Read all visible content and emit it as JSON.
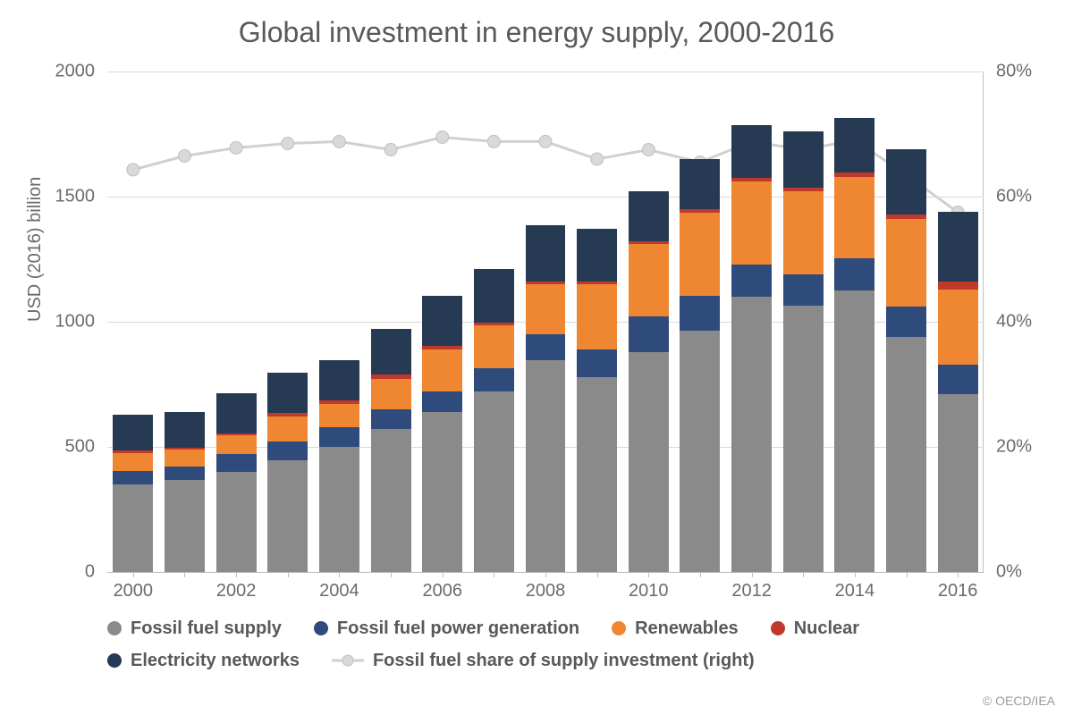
{
  "title": "Global investment in energy supply, 2000-2016",
  "credit": "© OECD/IEA",
  "y_left": {
    "label": "USD (2016) billion",
    "min": 0,
    "max": 2000,
    "ticks": [
      0,
      500,
      1000,
      1500,
      2000
    ],
    "fontsize": 20,
    "color": "#6b6b6b"
  },
  "y_right": {
    "min": 0,
    "max": 80,
    "ticks": [
      0,
      20,
      40,
      60,
      80
    ],
    "suffix": "%",
    "fontsize": 20,
    "color": "#6b6b6b"
  },
  "x": {
    "categories": [
      2000,
      2001,
      2002,
      2003,
      2004,
      2005,
      2006,
      2007,
      2008,
      2009,
      2010,
      2011,
      2012,
      2013,
      2014,
      2015,
      2016
    ],
    "tick_labels": [
      2000,
      2002,
      2004,
      2006,
      2008,
      2010,
      2012,
      2014,
      2016
    ],
    "fontsize": 20,
    "color": "#6b6b6b"
  },
  "grid": {
    "color": "#d9d9d9"
  },
  "axis_line_color": "#bfbfbf",
  "background_color": "#ffffff",
  "bar_width_ratio": 0.78,
  "series_colors": {
    "fossil_supply": "#8a8a8a",
    "fossil_power": "#2f4b7c",
    "renewables": "#ef8632",
    "nuclear": "#c0392b",
    "networks": "#263a53"
  },
  "series_labels": {
    "fossil_supply": "Fossil fuel supply",
    "fossil_power": "Fossil fuel power generation",
    "renewables": "Renewables",
    "nuclear": "Nuclear",
    "networks": "Electricity networks",
    "share_line": "Fossil fuel share of supply investment (right)"
  },
  "stack_order": [
    "fossil_supply",
    "fossil_power",
    "renewables",
    "nuclear",
    "networks"
  ],
  "stacked": {
    "fossil_supply": [
      350,
      368,
      400,
      448,
      500,
      570,
      640,
      720,
      845,
      780,
      880,
      965,
      1100,
      1065,
      1125,
      940,
      710
    ],
    "fossil_power": [
      55,
      55,
      70,
      75,
      80,
      80,
      80,
      95,
      105,
      110,
      140,
      140,
      130,
      125,
      130,
      120,
      120
    ],
    "renewables": [
      70,
      65,
      75,
      100,
      90,
      120,
      170,
      170,
      200,
      260,
      290,
      330,
      330,
      330,
      325,
      350,
      300
    ],
    "nuclear": [
      10,
      10,
      10,
      12,
      15,
      20,
      15,
      10,
      10,
      10,
      10,
      15,
      15,
      15,
      15,
      20,
      30
    ],
    "networks": [
      145,
      140,
      160,
      160,
      160,
      180,
      200,
      215,
      225,
      210,
      200,
      200,
      210,
      225,
      220,
      260,
      280
    ]
  },
  "share_line": {
    "values": [
      64.3,
      66.5,
      67.8,
      68.5,
      68.8,
      67.5,
      69.5,
      68.8,
      68.8,
      66.0,
      67.5,
      65.5,
      68.8,
      67.5,
      69.0,
      63.5,
      57.5
    ],
    "color": "#d0d0d0",
    "marker_fill": "#d9d9d9",
    "marker_stroke": "#bfbfbf",
    "marker_radius": 7,
    "line_width": 3
  },
  "legend_font": {
    "size": 20,
    "weight": 600,
    "color": "#595959"
  }
}
